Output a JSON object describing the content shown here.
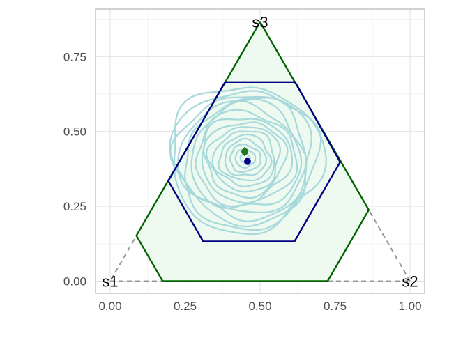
{
  "chart_data": {
    "type": "scatter",
    "title": "",
    "xlabel": "",
    "ylabel": "",
    "xlim": [
      -0.05,
      1.05
    ],
    "ylim": [
      -0.04,
      0.91
    ],
    "x_ticks": [
      0.0,
      0.25,
      0.5,
      0.75,
      1.0
    ],
    "x_tick_labels": [
      "0.00",
      "0.25",
      "0.50",
      "0.75",
      "1.00"
    ],
    "y_ticks": [
      0.0,
      0.25,
      0.5,
      0.75
    ],
    "y_tick_labels": [
      "0.00",
      "0.25",
      "0.50",
      "0.75"
    ],
    "grid": true,
    "vertices": [
      {
        "label": "s1",
        "x": 0.0,
        "y": 0.0
      },
      {
        "label": "s2",
        "x": 1.0,
        "y": 0.0
      },
      {
        "label": "s3",
        "x": 0.5,
        "y": 0.866
      }
    ],
    "simplex_color": "#999999",
    "outer_region": {
      "color": "#006400",
      "fill": "#eefaef",
      "points": [
        [
          0.175,
          0.0
        ],
        [
          0.725,
          0.0
        ],
        [
          0.8625,
          0.238
        ],
        [
          0.5,
          0.866
        ],
        [
          0.0875,
          0.152
        ]
      ]
    },
    "inner_region": {
      "color": "#000080",
      "points": [
        [
          0.31,
          0.133
        ],
        [
          0.615,
          0.133
        ],
        [
          0.767,
          0.398
        ],
        [
          0.617,
          0.665
        ],
        [
          0.383,
          0.665
        ],
        [
          0.194,
          0.335
        ]
      ]
    },
    "contour_color": "#a6d8dc",
    "contour_center": [
      0.45,
      0.41
    ],
    "contour_levels": [
      {
        "rx": 0.016,
        "ry": 0.014
      },
      {
        "rx": 0.033,
        "ry": 0.029
      },
      {
        "rx": 0.051,
        "ry": 0.045
      },
      {
        "rx": 0.068,
        "ry": 0.06
      },
      {
        "rx": 0.085,
        "ry": 0.076
      },
      {
        "rx": 0.102,
        "ry": 0.092
      },
      {
        "rx": 0.118,
        "ry": 0.108
      },
      {
        "rx": 0.134,
        "ry": 0.124
      },
      {
        "rx": 0.15,
        "ry": 0.14
      },
      {
        "rx": 0.166,
        "ry": 0.156
      },
      {
        "rx": 0.182,
        "ry": 0.172
      },
      {
        "rx": 0.198,
        "ry": 0.188
      },
      {
        "rx": 0.213,
        "ry": 0.202
      },
      {
        "rx": 0.227,
        "ry": 0.216
      },
      {
        "rx": 0.241,
        "ry": 0.23
      },
      {
        "rx": 0.253,
        "ry": 0.244
      }
    ],
    "points": [
      {
        "x": 0.449,
        "y": 0.433,
        "color": "#1f7a1f",
        "error_x": [
          0.437,
          0.459
        ],
        "error_y": [
          0.418,
          0.448
        ]
      },
      {
        "x": 0.458,
        "y": 0.4,
        "color": "#00008b"
      }
    ]
  }
}
